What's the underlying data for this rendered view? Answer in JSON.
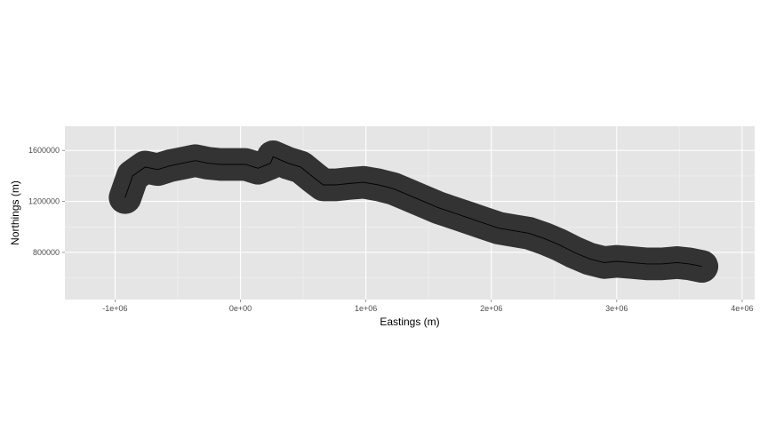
{
  "chart_data": {
    "type": "line",
    "title": "",
    "xlabel": "Eastings (m)",
    "ylabel": "Northings (m)",
    "xlim": [
      -1400000,
      4100000
    ],
    "ylim": [
      430000,
      1790000
    ],
    "x_ticks": [
      {
        "value": -1000000,
        "label": "-1e+06"
      },
      {
        "value": 0,
        "label": "0e+00"
      },
      {
        "value": 1000000,
        "label": "1e+06"
      },
      {
        "value": 2000000,
        "label": "2e+06"
      },
      {
        "value": 3000000,
        "label": "3e+06"
      },
      {
        "value": 4000000,
        "label": "4e+06"
      }
    ],
    "y_ticks": [
      {
        "value": 800000,
        "label": "800000"
      },
      {
        "value": 1200000,
        "label": "1200000"
      },
      {
        "value": 1600000,
        "label": "1600000"
      }
    ],
    "grid": true,
    "legend": "none",
    "colors": {
      "panel": "#e5e5e5",
      "grid_major": "#ffffff",
      "grid_minor": "#f2f2f2",
      "buffer": "#333333",
      "line": "#000000"
    },
    "series": [
      {
        "x": [
          -920000,
          -860000,
          -760000,
          -660000,
          -560000,
          -460000,
          -360000,
          -260000,
          -160000,
          -60000,
          40000,
          140000,
          240000,
          260000,
          380000,
          480000,
          580000,
          660000,
          760000,
          860000,
          980000,
          1100000,
          1220000,
          1340000,
          1460000,
          1580000,
          1700000,
          1820000,
          1940000,
          2060000,
          2180000,
          2300000,
          2420000,
          2540000,
          2660000,
          2780000,
          2900000,
          3000000,
          3120000,
          3240000,
          3360000,
          3480000,
          3580000,
          3680000
        ],
        "y": [
          1230000,
          1400000,
          1470000,
          1450000,
          1480000,
          1500000,
          1520000,
          1500000,
          1490000,
          1490000,
          1490000,
          1460000,
          1500000,
          1550000,
          1500000,
          1470000,
          1390000,
          1330000,
          1330000,
          1340000,
          1350000,
          1330000,
          1300000,
          1250000,
          1200000,
          1150000,
          1110000,
          1070000,
          1030000,
          990000,
          970000,
          950000,
          910000,
          860000,
          800000,
          750000,
          720000,
          730000,
          720000,
          710000,
          710000,
          720000,
          710000,
          690000
        ]
      }
    ],
    "buffer_width_m": 130000
  }
}
